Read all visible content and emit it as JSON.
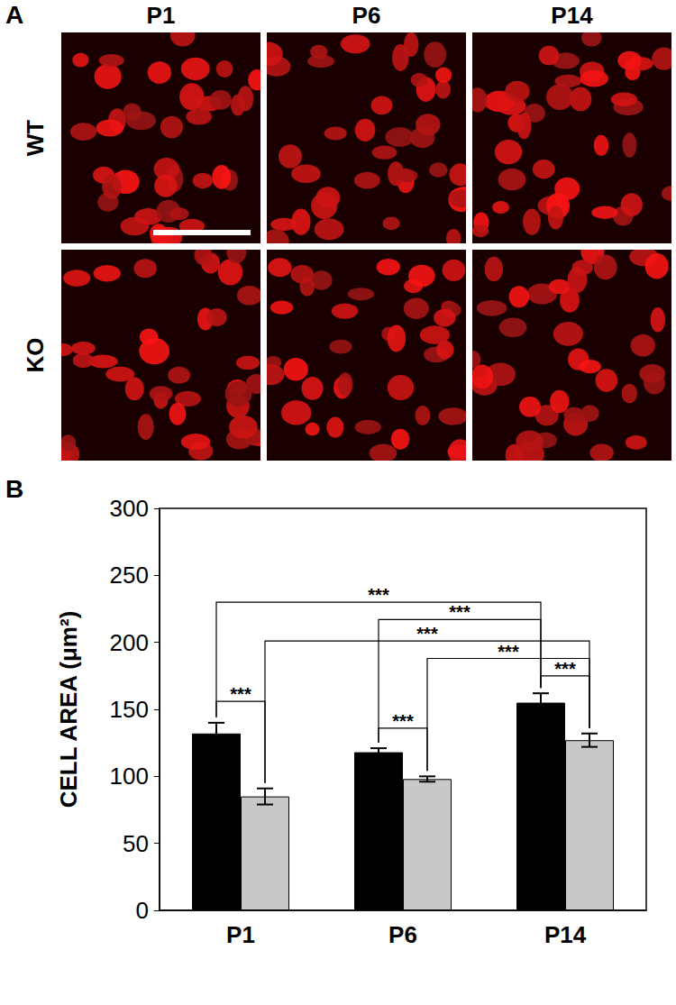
{
  "panel_a": {
    "label": "A",
    "columns": [
      "P1",
      "P6",
      "P14"
    ],
    "rows": [
      "WT",
      "KO"
    ]
  },
  "chart_data": {
    "type": "bar",
    "panel_label": "B",
    "categories": [
      "P1",
      "P6",
      "P14"
    ],
    "series": [
      {
        "color": "#000000",
        "values": [
          132,
          118,
          155
        ],
        "errors": [
          8,
          3,
          7
        ]
      },
      {
        "color": "#c8c8c8",
        "values": [
          85,
          98,
          127
        ],
        "errors": [
          6,
          2,
          5
        ]
      }
    ],
    "y_label": "CELL AREA (μm²)",
    "ylim": [
      0,
      300
    ],
    "yticks": [
      0,
      50,
      100,
      150,
      200,
      250,
      300
    ],
    "grid": false,
    "annotations": [
      {
        "from": [
          0,
          0
        ],
        "to": [
          2,
          0
        ],
        "y": 230,
        "label": "***"
      },
      {
        "from": [
          1,
          0
        ],
        "to": [
          2,
          0
        ],
        "y": 217,
        "label": "***"
      },
      {
        "from": [
          0,
          1
        ],
        "to": [
          2,
          1
        ],
        "y": 201,
        "label": "***"
      },
      {
        "from": [
          1,
          1
        ],
        "to": [
          2,
          1
        ],
        "y": 188,
        "label": "***"
      },
      {
        "from": [
          2,
          0
        ],
        "to": [
          2,
          1
        ],
        "y": 175,
        "label": "***"
      },
      {
        "from": [
          0,
          0
        ],
        "to": [
          0,
          1
        ],
        "y": 156,
        "label": "***"
      },
      {
        "from": [
          1,
          0
        ],
        "to": [
          1,
          1
        ],
        "y": 136,
        "label": "***"
      }
    ]
  }
}
